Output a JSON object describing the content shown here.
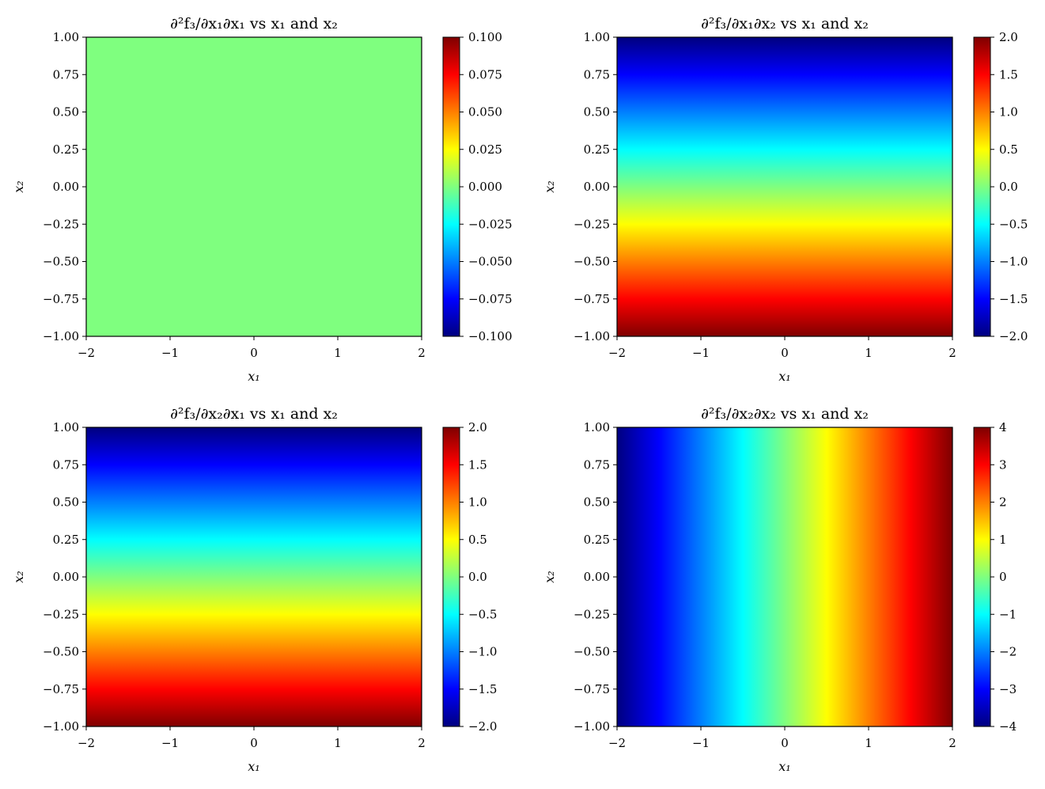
{
  "colors": {
    "colormap": "jet",
    "jet_stops": [
      "#00007f",
      "#0000ff",
      "#007fff",
      "#00ffff",
      "#7fff7f",
      "#ffff00",
      "#ff7f00",
      "#ff0000",
      "#7f0000"
    ]
  },
  "chart_data": [
    {
      "id": "p1",
      "type": "heatmap",
      "title": "∂²f₃/∂x₁∂x₁ vs x₁ and x₂",
      "xlabel": "x₁",
      "ylabel": "x₂",
      "xlim": [
        -2,
        2
      ],
      "ylim": [
        -1,
        1
      ],
      "xticks": [
        "−2",
        "−1",
        "0",
        "1",
        "2"
      ],
      "yticks": [
        "−1.00",
        "−0.75",
        "−0.50",
        "−0.25",
        "0.00",
        "0.25",
        "0.50",
        "0.75",
        "1.00"
      ],
      "formula": "0",
      "colorbar": {
        "range": [
          -0.1,
          0.1
        ],
        "ticks": [
          "−0.100",
          "−0.075",
          "−0.050",
          "−0.025",
          "0.000",
          "0.025",
          "0.050",
          "0.075",
          "0.100"
        ]
      }
    },
    {
      "id": "p2",
      "type": "heatmap",
      "title": "∂²f₃/∂x₁∂x₂ vs x₁ and x₂",
      "xlabel": "x₁",
      "ylabel": "x₂",
      "xlim": [
        -2,
        2
      ],
      "ylim": [
        -1,
        1
      ],
      "xticks": [
        "−2",
        "−1",
        "0",
        "1",
        "2"
      ],
      "yticks": [
        "−1.00",
        "−0.75",
        "−0.50",
        "−0.25",
        "0.00",
        "0.25",
        "0.50",
        "0.75",
        "1.00"
      ],
      "formula": "-2*x2",
      "colorbar": {
        "range": [
          -2,
          2
        ],
        "ticks": [
          "−2.0",
          "−1.5",
          "−1.0",
          "−0.5",
          "0.0",
          "0.5",
          "1.0",
          "1.5",
          "2.0"
        ]
      }
    },
    {
      "id": "p3",
      "type": "heatmap",
      "title": "∂²f₃/∂x₂∂x₁ vs x₁ and x₂",
      "xlabel": "x₁",
      "ylabel": "x₂",
      "xlim": [
        -2,
        2
      ],
      "ylim": [
        -1,
        1
      ],
      "xticks": [
        "−2",
        "−1",
        "0",
        "1",
        "2"
      ],
      "yticks": [
        "−1.00",
        "−0.75",
        "−0.50",
        "−0.25",
        "0.00",
        "0.25",
        "0.50",
        "0.75",
        "1.00"
      ],
      "formula": "-2*x2",
      "colorbar": {
        "range": [
          -2,
          2
        ],
        "ticks": [
          "−2.0",
          "−1.5",
          "−1.0",
          "−0.5",
          "0.0",
          "0.5",
          "1.0",
          "1.5",
          "2.0"
        ]
      }
    },
    {
      "id": "p4",
      "type": "heatmap",
      "title": "∂²f₃/∂x₂∂x₂ vs x₁ and x₂",
      "xlabel": "x₁",
      "ylabel": "x₂",
      "xlim": [
        -2,
        2
      ],
      "ylim": [
        -1,
        1
      ],
      "xticks": [
        "−2",
        "−1",
        "0",
        "1",
        "2"
      ],
      "yticks": [
        "−1.00",
        "−0.75",
        "−0.50",
        "−0.25",
        "0.00",
        "0.25",
        "0.50",
        "0.75",
        "1.00"
      ],
      "formula": "2*x1",
      "colorbar": {
        "range": [
          -4,
          4
        ],
        "ticks": [
          "−4",
          "−3",
          "−2",
          "−1",
          "0",
          "1",
          "2",
          "3",
          "4"
        ]
      }
    }
  ]
}
